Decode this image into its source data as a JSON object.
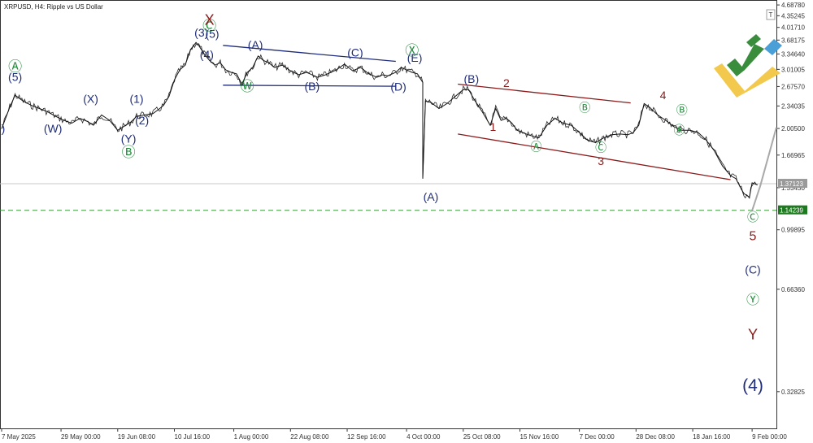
{
  "header": {
    "title": "XRPUSD, H4:  Ripple vs US Dollar"
  },
  "colors": {
    "price": "#111111",
    "navy": "#1f2c7a",
    "green": "#1f8c3a",
    "red": "#8b1a1a",
    "projection": "#a9a9a9",
    "dashed_level": "#3a9a3a",
    "badge_gray": "#9a9a9a",
    "badge_green": "#1e7a1e"
  },
  "chart_data": {
    "type": "line",
    "title": "XRPUSD, H4:  Ripple vs US Dollar",
    "xlabel": "",
    "ylabel": "",
    "y_log": true,
    "ylim": [
      0.255,
      4.85
    ],
    "xlim": [
      "2025-05-07",
      "2025-02-18"
    ],
    "x_ticks": [
      "7 May 2025",
      "29 May 00:00",
      "19 Jun 08:00",
      "10 Jul 16:00",
      "1 Aug 00:00",
      "22 Aug 08:00",
      "12 Sep 16:00",
      "4 Oct 00:00",
      "25 Oct 08:00",
      "15 Nov 16:00",
      "7 Dec 00:00",
      "28 Dec 08:00",
      "18 Jan 16:00",
      "9 Feb 00:00"
    ],
    "y_ticks": [
      "4.68780",
      "4.35245",
      "4.01710",
      "3.68175",
      "3.34640",
      "3.01005",
      "2.67570",
      "2.34035",
      "2.00500",
      "1.66965",
      "1.33430",
      "0.99895",
      "0.66360",
      "0.32825"
    ],
    "y_tick_values": [
      4.6878,
      4.35245,
      4.0171,
      3.68175,
      3.3464,
      3.01005,
      2.6757,
      2.34035,
      2.005,
      1.66965,
      1.3343,
      0.99895,
      0.6636,
      0.32825
    ],
    "current_price": "1.37123",
    "current_price_value": 1.37123,
    "target_level": "1.14239",
    "target_level_value": 1.14239,
    "series": [
      {
        "x": [
          "2025-05-07",
          "2025-05-10",
          "2025-05-12",
          "2025-05-15",
          "2025-05-18",
          "2025-05-21",
          "2025-05-24",
          "2025-05-27",
          "2025-05-30",
          "2025-06-02",
          "2025-06-05",
          "2025-06-08",
          "2025-06-10",
          "2025-06-13",
          "2025-06-16",
          "2025-06-19",
          "2025-06-22",
          "2025-06-24",
          "2025-06-26",
          "2025-06-29",
          "2025-07-02",
          "2025-07-04",
          "2025-07-06",
          "2025-07-08",
          "2025-07-10",
          "2025-07-12",
          "2025-07-14",
          "2025-07-16",
          "2025-07-18",
          "2025-07-19",
          "2025-07-21",
          "2025-07-23",
          "2025-07-25",
          "2025-07-27",
          "2025-07-29",
          "2025-07-31",
          "2025-08-02",
          "2025-08-04",
          "2025-08-06",
          "2025-08-08",
          "2025-08-10",
          "2025-08-12",
          "2025-08-14",
          "2025-08-16",
          "2025-08-19",
          "2025-08-22",
          "2025-08-25",
          "2025-08-28",
          "2025-09-01",
          "2025-09-04",
          "2025-09-08",
          "2025-09-11",
          "2025-09-14",
          "2025-09-17",
          "2025-09-20",
          "2025-09-23",
          "2025-09-25",
          "2025-09-27",
          "2025-09-30",
          "2025-10-02",
          "2025-10-04",
          "2025-10-06",
          "2025-10-08",
          "2025-10-10",
          "2025-10-10",
          "2025-10-11",
          "2025-10-13",
          "2025-10-16",
          "2025-10-19",
          "2025-10-22",
          "2025-10-25",
          "2025-10-27",
          "2025-10-29",
          "2025-11-01",
          "2025-11-04",
          "2025-11-06",
          "2025-11-08",
          "2025-11-10",
          "2025-11-12",
          "2025-11-14",
          "2025-11-18",
          "2025-11-22",
          "2025-11-25",
          "2025-11-28",
          "2025-12-01",
          "2025-12-04",
          "2025-12-07",
          "2025-12-10",
          "2025-12-13",
          "2025-12-16",
          "2025-12-19",
          "2025-12-22",
          "2025-12-25",
          "2025-12-27",
          "2025-12-29",
          "2025-12-31",
          "2026-01-02",
          "2026-01-05",
          "2026-01-08",
          "2026-01-11",
          "2026-01-14",
          "2026-01-17",
          "2026-01-20",
          "2026-01-23",
          "2026-01-26",
          "2026-01-29",
          "2026-02-01",
          "2026-02-03",
          "2026-02-05",
          "2026-02-06",
          "2026-02-08",
          "2026-02-09",
          "2026-02-11"
        ],
        "y": [
          2.0,
          2.32,
          2.52,
          2.42,
          2.35,
          2.3,
          2.25,
          2.18,
          2.12,
          2.08,
          2.15,
          2.1,
          2.05,
          2.2,
          2.12,
          1.98,
          2.05,
          2.1,
          2.18,
          2.2,
          2.22,
          2.28,
          2.35,
          2.5,
          2.8,
          3.0,
          3.1,
          3.45,
          3.62,
          3.55,
          3.35,
          3.2,
          3.1,
          3.15,
          3.0,
          2.95,
          2.92,
          2.72,
          2.95,
          3.05,
          3.3,
          3.2,
          3.15,
          3.05,
          3.1,
          2.98,
          2.9,
          2.95,
          2.85,
          2.9,
          3.0,
          3.12,
          2.98,
          3.05,
          2.92,
          2.85,
          2.9,
          2.88,
          2.95,
          3.05,
          3.0,
          2.95,
          2.92,
          2.75,
          1.42,
          2.42,
          2.4,
          2.3,
          2.38,
          2.5,
          2.62,
          2.62,
          2.45,
          2.25,
          2.05,
          2.3,
          2.12,
          2.15,
          2.08,
          1.98,
          1.92,
          1.88,
          2.05,
          2.15,
          2.08,
          2.05,
          1.95,
          1.85,
          1.82,
          1.88,
          1.92,
          1.93,
          1.92,
          1.95,
          2.05,
          2.38,
          2.32,
          2.2,
          2.12,
          2.03,
          1.98,
          1.98,
          1.95,
          1.85,
          1.72,
          1.55,
          1.45,
          1.42,
          1.32,
          1.28,
          1.25,
          1.38,
          1.36
        ]
      }
    ],
    "projection": {
      "x": [
        "2026-02-09",
        "2026-02-12",
        "2026-02-18"
      ],
      "y": [
        1.14,
        1.35,
        2.02
      ]
    },
    "channel_lines": [
      {
        "color": "navy",
        "x": [
          "2025-07-28",
          "2025-09-30"
        ],
        "y": [
          3.55,
          3.18
        ]
      },
      {
        "color": "navy",
        "x": [
          "2025-07-28",
          "2025-09-30"
        ],
        "y": [
          2.7,
          2.68
        ]
      },
      {
        "color": "red",
        "x": [
          "2025-10-23",
          "2025-12-26"
        ],
        "y": [
          2.72,
          2.39
        ]
      },
      {
        "color": "red",
        "x": [
          "2025-10-23",
          "2026-02-01"
        ],
        "y": [
          1.93,
          1.41
        ]
      }
    ],
    "wave_labels": [
      {
        "text": "(5)",
        "x": "2025-05-12",
        "y": 2.78,
        "color": "navy",
        "size": 14
      },
      {
        "text": "Ⓐ",
        "x": "2025-05-12",
        "y": 2.97,
        "color": "green",
        "size": 17
      },
      {
        "text": ")",
        "x": "2025-05-07",
        "y": 1.95,
        "color": "navy",
        "size": 14
      },
      {
        "text": "(W)",
        "x": "2025-05-26",
        "y": 1.95,
        "color": "navy",
        "size": 14
      },
      {
        "text": "(X)",
        "x": "2025-06-09",
        "y": 2.39,
        "color": "navy",
        "size": 14
      },
      {
        "text": "(1)",
        "x": "2025-06-26",
        "y": 2.39,
        "color": "navy",
        "size": 14
      },
      {
        "text": "(2)",
        "x": "2025-06-28",
        "y": 2.06,
        "color": "navy",
        "size": 14
      },
      {
        "text": "(Y)",
        "x": "2025-06-23",
        "y": 1.82,
        "color": "navy",
        "size": 14
      },
      {
        "text": "Ⓑ",
        "x": "2025-06-23",
        "y": 1.65,
        "color": "green",
        "size": 17
      },
      {
        "text": "(4)",
        "x": "2025-07-22",
        "y": 3.24,
        "color": "navy",
        "size": 14
      },
      {
        "text": "(3)",
        "x": "2025-07-20",
        "y": 3.77,
        "color": "navy",
        "size": 14
      },
      {
        "text": "(5)",
        "x": "2025-07-24",
        "y": 3.74,
        "color": "navy",
        "size": 14
      },
      {
        "text": "Ⓒ",
        "x": "2025-07-23",
        "y": 3.93,
        "color": "green",
        "size": 17
      },
      {
        "text": "X",
        "x": "2025-07-23",
        "y": 4.09,
        "color": "red",
        "size": 18
      },
      {
        "text": "(A)",
        "x": "2025-08-09",
        "y": 3.47,
        "color": "navy",
        "size": 14
      },
      {
        "text": "Ⓦ",
        "x": "2025-08-06",
        "y": 2.59,
        "color": "green",
        "size": 17
      },
      {
        "text": "(B)",
        "x": "2025-08-30",
        "y": 2.61,
        "color": "navy",
        "size": 14
      },
      {
        "text": "(C)",
        "x": "2025-09-15",
        "y": 3.29,
        "color": "navy",
        "size": 14
      },
      {
        "text": "(D)",
        "x": "2025-10-01",
        "y": 2.6,
        "color": "navy",
        "size": 14
      },
      {
        "text": "(E)",
        "x": "2025-10-07",
        "y": 3.17,
        "color": "navy",
        "size": 14
      },
      {
        "text": "Ⓧ",
        "x": "2025-10-06",
        "y": 3.32,
        "color": "green",
        "size": 17
      },
      {
        "text": "(A)",
        "x": "2025-10-13",
        "y": 1.22,
        "color": "navy",
        "size": 14
      },
      {
        "text": "(B)",
        "x": "2025-10-28",
        "y": 2.74,
        "color": "navy",
        "size": 14
      },
      {
        "text": "1",
        "x": "2025-11-05",
        "y": 1.97,
        "color": "red",
        "size": 14
      },
      {
        "text": "2",
        "x": "2025-11-10",
        "y": 2.67,
        "color": "red",
        "size": 14
      },
      {
        "text": "Ⓐ",
        "x": "2025-11-21",
        "y": 1.72,
        "color": "green",
        "size": 14
      },
      {
        "text": "Ⓑ",
        "x": "2025-12-09",
        "y": 2.25,
        "color": "green",
        "size": 14
      },
      {
        "text": "Ⓒ",
        "x": "2025-12-15",
        "y": 1.71,
        "color": "green",
        "size": 14
      },
      {
        "text": "3",
        "x": "2025-12-15",
        "y": 1.56,
        "color": "red",
        "size": 14
      },
      {
        "text": "4",
        "x": "2026-01-07",
        "y": 2.45,
        "color": "red",
        "size": 14
      },
      {
        "text": "Ⓑ",
        "x": "2026-01-14",
        "y": 2.21,
        "color": "green",
        "size": 14
      },
      {
        "text": "Ⓐ",
        "x": "2026-01-13",
        "y": 1.93,
        "color": "green",
        "size": 14
      },
      {
        "text": "Ⓒ",
        "x": "2026-02-18",
        "y": 1.06,
        "color": "green",
        "size": 14
      },
      {
        "text": "5",
        "x": "2026-02-18",
        "y": 0.93,
        "color": "red",
        "size": 16
      },
      {
        "text": "(C)",
        "x": "2026-02-18",
        "y": 0.74,
        "color": "navy",
        "size": 14
      },
      {
        "text": "Ⓨ",
        "x": "2026-02-18",
        "y": 0.6,
        "color": "green",
        "size": 16
      },
      {
        "text": "Y",
        "x": "2026-02-18",
        "y": 0.47,
        "color": "red",
        "size": 18
      },
      {
        "text": "(4)",
        "x": "2026-02-18",
        "y": 0.33,
        "color": "navy",
        "size": 21
      }
    ]
  }
}
